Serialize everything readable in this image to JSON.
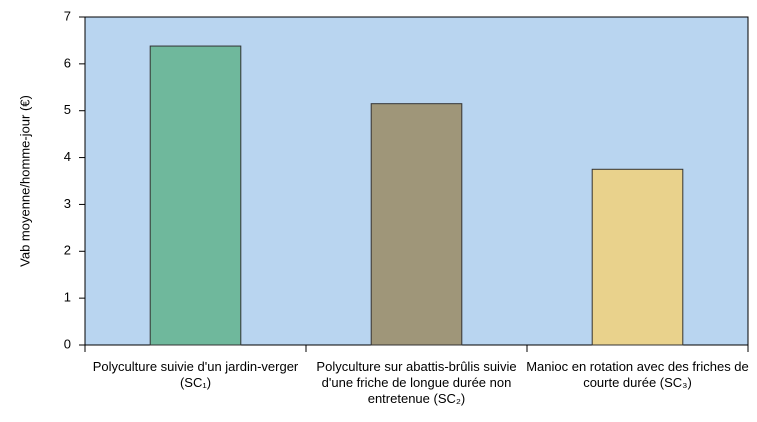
{
  "chart_data": {
    "type": "bar",
    "y_label": "Vab moyenne/homme-jour (€)",
    "categories": [
      "Polyculture suivie d'un jardin-verger (SC₁)",
      "Polyculture sur abattis-brûlis suivie d'une friche de longue durée non entretenue (SC₂)",
      "Manioc en rotation avec des friches de courte durée (SC₃)"
    ],
    "values": [
      6.38,
      5.15,
      3.75
    ],
    "colors": [
      "#6fb89c",
      "#9f9679",
      "#e9d28c"
    ],
    "ylim": [
      0,
      7
    ],
    "yticks": [
      0,
      1,
      2,
      3,
      4,
      5,
      6,
      7
    ],
    "grid": false
  }
}
